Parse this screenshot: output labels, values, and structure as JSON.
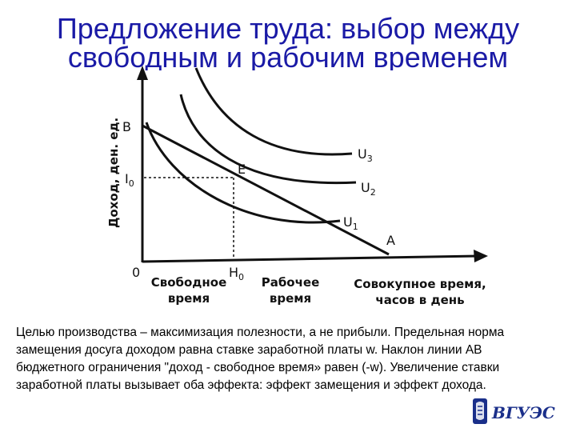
{
  "slide": {
    "title_line1": "Предложение труда: выбор между",
    "title_line2": "свободным и рабочим временем",
    "title_color": "#1a1aa6",
    "paragraph": "Целью производства – максимизация полезности, а не прибыли. Предельная норма замещения досуга доходом равна ставке заработной платы w. Наклон линии АВ бюджетного ограничения \"доход - свободное время» равен (-w). Увеличение ставки заработной платы вызывает оба эффекта: эффект замещения и эффект дохода."
  },
  "diagram": {
    "y_axis_label": "Доход, ден. ед.",
    "origin_label": "0",
    "point_b_label": "B",
    "i0_label": "I",
    "i0_sub": "0",
    "point_e_label": "E",
    "point_a_label": "A",
    "h0_label": "H",
    "h0_sub": "0",
    "u1_label": "U",
    "u1_sub": "1",
    "u2_label": "U",
    "u2_sub": "2",
    "u3_label": "U",
    "u3_sub": "3",
    "leisure_line1": "Свободное",
    "leisure_line2": "время",
    "work_line1": "Рабочее",
    "work_line2": "время",
    "total_line1": "Совокупное время,",
    "total_line2": "часов в день"
  },
  "logo": {
    "text": "ВГУЭС",
    "icon": "university-crest-icon"
  }
}
